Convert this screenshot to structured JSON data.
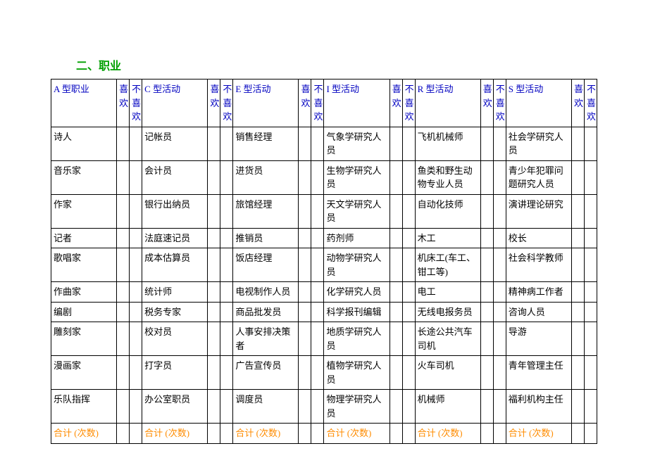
{
  "title": "二、职业",
  "colors": {
    "title": "#00a000",
    "header": "#0000c0",
    "total": "#ff8c00",
    "border": "#000000",
    "background": "#ffffff"
  },
  "typography": {
    "font_family": "SimSun",
    "body_fontsize": 13,
    "title_fontsize": 16
  },
  "table": {
    "groups": [
      {
        "header": "A 型职业",
        "like": "喜欢",
        "dislike": "不喜欢",
        "rows": [
          "诗人",
          "音乐家",
          "作家",
          "记者",
          "歌唱家",
          "作曲家",
          "编剧",
          "雕刻家",
          "漫画家",
          "乐队指挥"
        ]
      },
      {
        "header": "C 型活动",
        "like": "喜欢",
        "dislike": "不喜欢",
        "rows": [
          "记帐员",
          "会计员",
          "银行出纳员",
          "法庭速记员",
          "成本估算员",
          "统计师",
          "税务专家",
          "校对员",
          "打字员",
          "办公室职员"
        ]
      },
      {
        "header": "E 型活动",
        "like": "喜欢",
        "dislike": "不喜欢",
        "rows": [
          "销售经理",
          "进货员",
          "旅馆经理",
          "推销员",
          "饭店经理",
          "电视制作人员",
          "商品批发员",
          "人事安排决策者",
          "广告宣传员",
          "调度员"
        ]
      },
      {
        "header": "I 型活动",
        "like": "喜欢",
        "dislike": "不喜欢",
        "rows": [
          "气象学研究人员",
          "生物学研究人员",
          "天文学研究人员",
          "药剂师",
          "动物学研究人员",
          "化学研究人员",
          "科学报刊编辑",
          "地质学研究人员",
          "植物学研究人员",
          "物理学研究人员"
        ]
      },
      {
        "header": "R 型活动",
        "like": "喜欢",
        "dislike": "不喜欢",
        "rows": [
          "飞机机械师",
          "鱼类和野生动物专业人员",
          "自动化技师",
          "木工",
          "机床工(车工、钳工等)",
          "电工",
          "无线电报务员",
          "长途公共汽车司机",
          "火车司机",
          "机械师"
        ]
      },
      {
        "header": "S 型活动",
        "like": "喜欢",
        "dislike": "不喜欢",
        "rows": [
          "社会学研究人员",
          "青少年犯罪问题研究人员",
          "演讲理论研究",
          "校长",
          "社会科学教师",
          "精神病工作者",
          "咨询人员",
          "导游",
          "青年管理主任",
          "福利机构主任"
        ]
      }
    ],
    "total_label": "合计 (次数)"
  }
}
